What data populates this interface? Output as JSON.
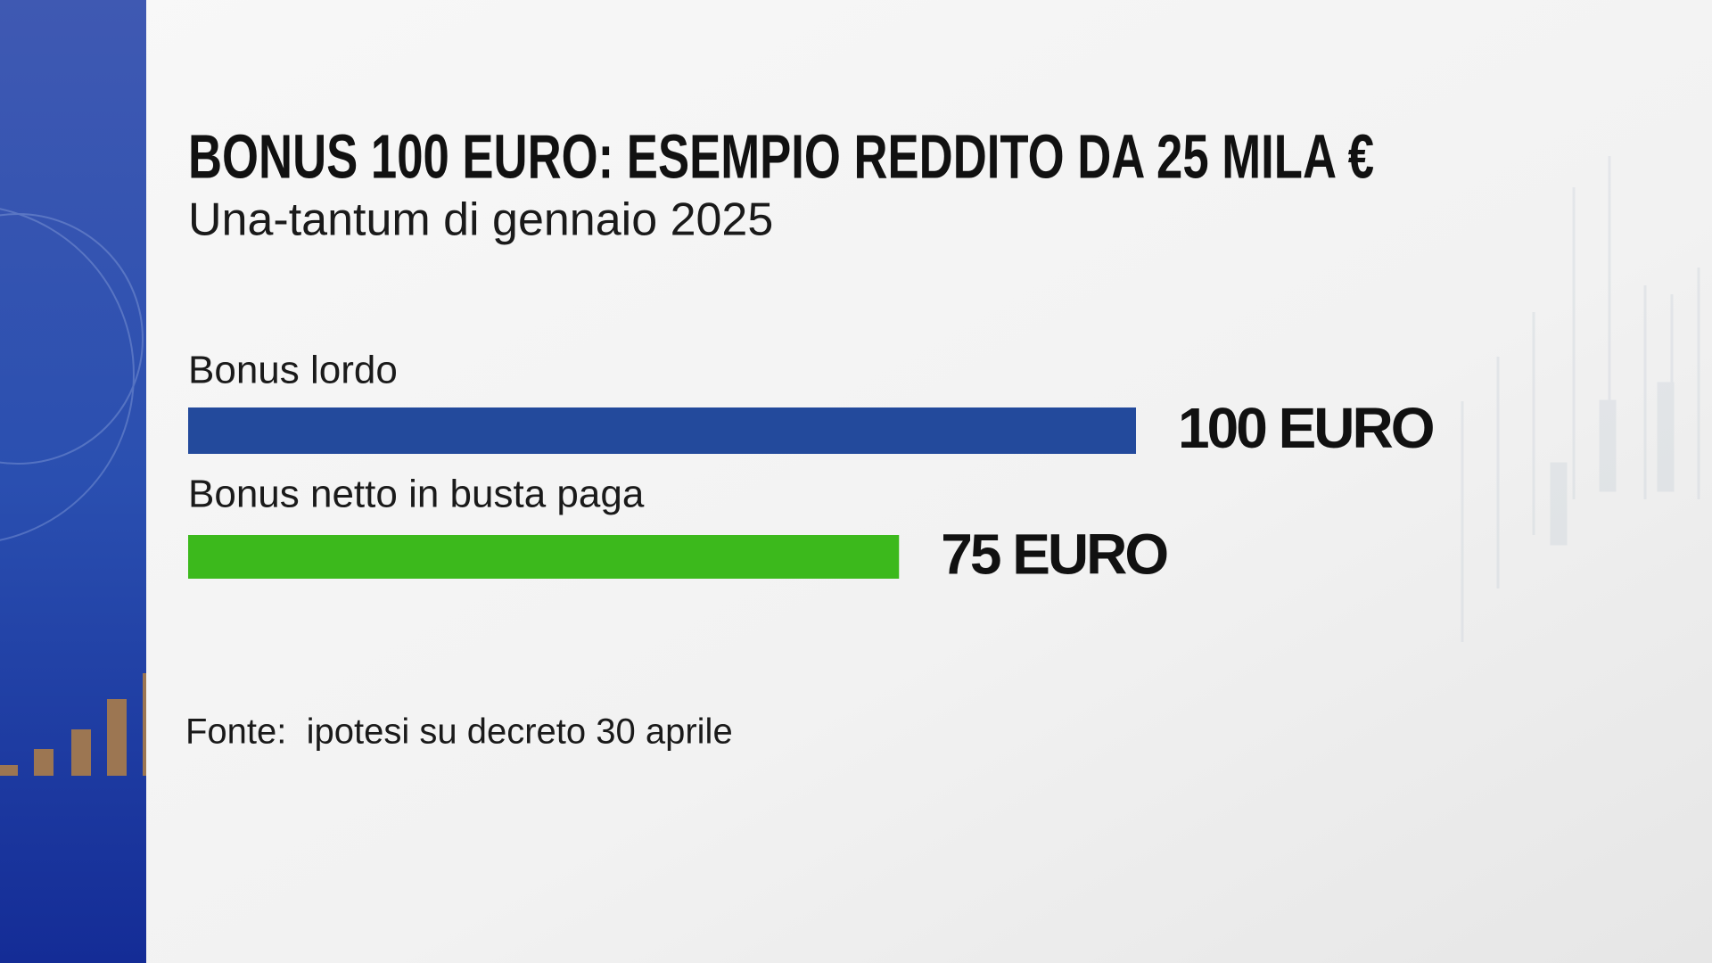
{
  "chart_data": {
    "type": "bar",
    "orientation": "horizontal",
    "title": "BONUS 100 EURO: ESEMPIO REDDITO DA 25 MILA €",
    "subtitle": "Una-tantum di gennaio 2025",
    "categories": [
      "Bonus lordo",
      "Bonus netto in busta paga"
    ],
    "values": [
      100,
      75
    ],
    "value_labels": [
      "100 EURO",
      "75 EURO"
    ],
    "colors": [
      "#234a9c",
      "#3cb91c"
    ],
    "xlim": [
      0,
      100
    ],
    "source": "Fonte:  ipotesi su decreto 30 aprile"
  }
}
